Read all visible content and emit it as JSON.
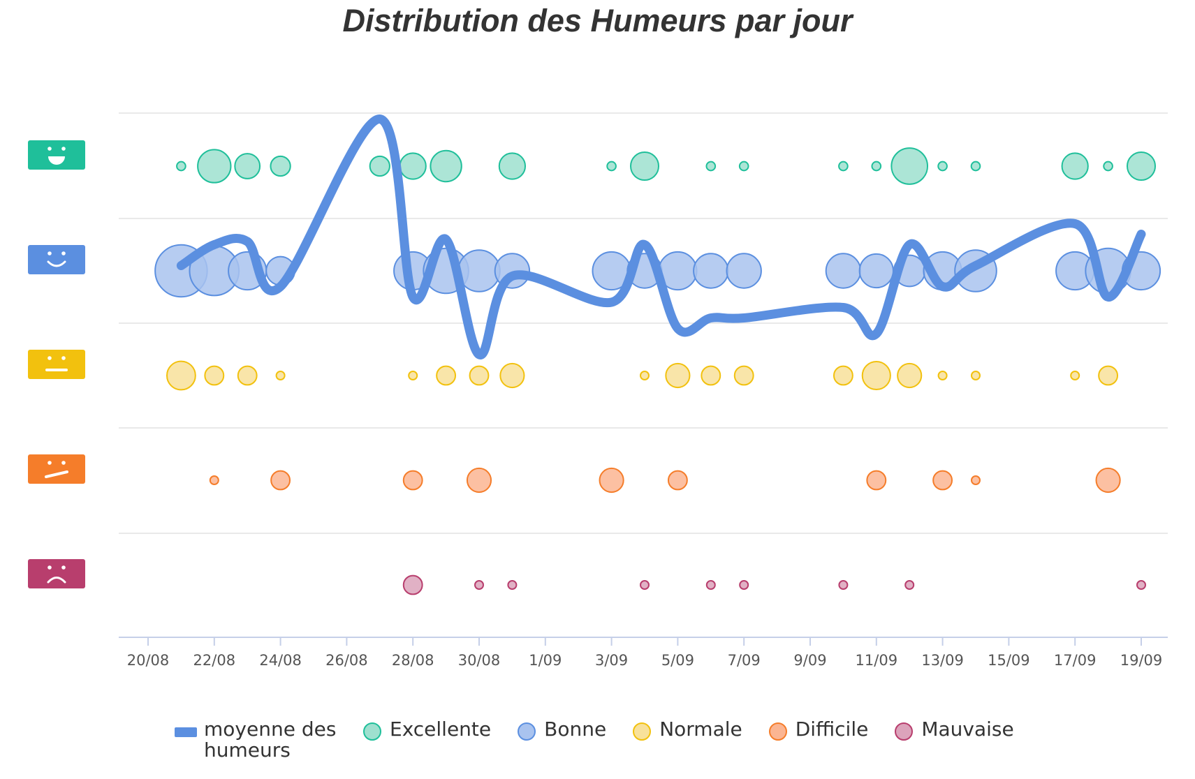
{
  "chart_data": {
    "type": "scatter",
    "title": "Distribution des Humeurs par jour",
    "x_ticks": [
      "20/08",
      "22/08",
      "24/08",
      "26/08",
      "28/08",
      "30/08",
      "1/09",
      "3/09",
      "5/09",
      "7/09",
      "9/09",
      "11/09",
      "13/09",
      "15/09",
      "17/09",
      "19/09"
    ],
    "x_range": [
      "2018-08-20",
      "2018-09-20"
    ],
    "y_categories": [
      "Excellente",
      "Bonne",
      "Normale",
      "Difficile",
      "Mauvaise"
    ],
    "y_icons": [
      "very-happy-face-icon",
      "happy-face-icon",
      "neutral-face-icon",
      "troubled-face-icon",
      "sad-face-icon"
    ],
    "series": [
      {
        "name": "Excellente",
        "color": "#1fbf9a",
        "fill": "#9ee0cf",
        "points": [
          [
            "2018-08-21",
            0.3
          ],
          [
            "2018-08-22",
            4.2
          ],
          [
            "2018-08-23",
            2.4
          ],
          [
            "2018-08-24",
            1.5
          ],
          [
            "2018-08-27",
            1.5
          ],
          [
            "2018-08-28",
            2.6
          ],
          [
            "2018-08-29",
            3.7
          ],
          [
            "2018-08-31",
            2.6
          ],
          [
            "2018-09-03",
            0.3
          ],
          [
            "2018-09-04",
            3.0
          ],
          [
            "2018-09-06",
            0.3
          ],
          [
            "2018-09-07",
            0.3
          ],
          [
            "2018-09-10",
            0.3
          ],
          [
            "2018-09-11",
            0.3
          ],
          [
            "2018-09-12",
            5.0
          ],
          [
            "2018-09-13",
            0.3
          ],
          [
            "2018-09-14",
            0.3
          ],
          [
            "2018-09-17",
            2.6
          ],
          [
            "2018-09-18",
            0.3
          ],
          [
            "2018-09-19",
            3.0
          ]
        ]
      },
      {
        "name": "Bonne",
        "color": "#5b8fe0",
        "fill": "#a9c3ef",
        "points": [
          [
            "2018-08-21",
            10.0
          ],
          [
            "2018-08-22",
            9.0
          ],
          [
            "2018-08-23",
            5.3
          ],
          [
            "2018-08-24",
            3.0
          ],
          [
            "2018-08-28",
            5.3
          ],
          [
            "2018-08-29",
            7.5
          ],
          [
            "2018-08-30",
            6.4
          ],
          [
            "2018-08-31",
            4.4
          ],
          [
            "2018-09-03",
            5.3
          ],
          [
            "2018-09-04",
            4.4
          ],
          [
            "2018-09-05",
            5.3
          ],
          [
            "2018-09-06",
            4.4
          ],
          [
            "2018-09-07",
            4.4
          ],
          [
            "2018-09-10",
            4.4
          ],
          [
            "2018-09-11",
            4.2
          ],
          [
            "2018-09-12",
            3.6
          ],
          [
            "2018-09-13",
            5.3
          ],
          [
            "2018-09-14",
            6.4
          ],
          [
            "2018-09-17",
            5.3
          ],
          [
            "2018-09-18",
            7.5
          ],
          [
            "2018-09-19",
            5.3
          ]
        ]
      },
      {
        "name": "Normale",
        "color": "#f2c10e",
        "fill": "#f8e19a",
        "points": [
          [
            "2018-08-21",
            3.0
          ],
          [
            "2018-08-22",
            1.3
          ],
          [
            "2018-08-23",
            1.3
          ],
          [
            "2018-08-24",
            0.1
          ],
          [
            "2018-08-28",
            0.1
          ],
          [
            "2018-08-29",
            1.3
          ],
          [
            "2018-08-30",
            1.3
          ],
          [
            "2018-08-31",
            2.1
          ],
          [
            "2018-09-04",
            0.1
          ],
          [
            "2018-09-05",
            2.1
          ],
          [
            "2018-09-06",
            1.3
          ],
          [
            "2018-09-07",
            1.3
          ],
          [
            "2018-09-10",
            1.3
          ],
          [
            "2018-09-11",
            2.9
          ],
          [
            "2018-09-12",
            2.1
          ],
          [
            "2018-09-13",
            0.1
          ],
          [
            "2018-09-14",
            0.1
          ],
          [
            "2018-09-17",
            0.1
          ],
          [
            "2018-09-18",
            1.3
          ]
        ]
      },
      {
        "name": "Difficile",
        "color": "#f57d2a",
        "fill": "#fbb592",
        "points": [
          [
            "2018-08-22",
            0.1
          ],
          [
            "2018-08-24",
            1.3
          ],
          [
            "2018-08-28",
            1.3
          ],
          [
            "2018-08-30",
            2.1
          ],
          [
            "2018-09-03",
            2.1
          ],
          [
            "2018-09-05",
            1.3
          ],
          [
            "2018-09-11",
            1.3
          ],
          [
            "2018-09-13",
            1.3
          ],
          [
            "2018-09-14",
            0.1
          ],
          [
            "2018-09-18",
            2.1
          ]
        ]
      },
      {
        "name": "Mauvaise",
        "color": "#b83e6d",
        "fill": "#dca3bb",
        "points": [
          [
            "2018-08-28",
            1.3
          ],
          [
            "2018-08-30",
            0.1
          ],
          [
            "2018-08-31",
            0.1
          ],
          [
            "2018-09-04",
            0.1
          ],
          [
            "2018-09-06",
            0.1
          ],
          [
            "2018-09-07",
            0.1
          ],
          [
            "2018-09-10",
            0.1
          ],
          [
            "2018-09-12",
            0.1
          ],
          [
            "2018-09-19",
            0.1
          ]
        ]
      }
    ],
    "average_line": {
      "name": "moyenne des humeurs",
      "color": "#5b8fe0",
      "points": [
        [
          "2018-08-21",
          4.05
        ],
        [
          "2018-08-22",
          4.25
        ],
        [
          "2018-08-23",
          4.28
        ],
        [
          "2018-08-24",
          3.85
        ],
        [
          "2018-08-27",
          5.45
        ],
        [
          "2018-08-28",
          3.75
        ],
        [
          "2018-08-29",
          4.3
        ],
        [
          "2018-08-30",
          3.2
        ],
        [
          "2018-08-31",
          3.95
        ],
        [
          "2018-09-03",
          3.7
        ],
        [
          "2018-09-04",
          4.25
        ],
        [
          "2018-09-05",
          3.45
        ],
        [
          "2018-09-06",
          3.55
        ],
        [
          "2018-09-07",
          3.55
        ],
        [
          "2018-09-10",
          3.65
        ],
        [
          "2018-09-11",
          3.4
        ],
        [
          "2018-09-12",
          4.25
        ],
        [
          "2018-09-13",
          3.85
        ],
        [
          "2018-09-14",
          4.05
        ],
        [
          "2018-09-17",
          4.45
        ],
        [
          "2018-09-18",
          3.75
        ],
        [
          "2018-09-19",
          4.35
        ]
      ]
    },
    "grid": true,
    "legend_position": "bottom"
  },
  "legend": [
    {
      "label": "moyenne des humeurs",
      "kind": "line",
      "color": "#5b8fe0"
    },
    {
      "label": "Excellente",
      "kind": "circle",
      "color": "#1fbf9a",
      "fill": "#9ee0cf"
    },
    {
      "label": "Bonne",
      "kind": "circle",
      "color": "#5b8fe0",
      "fill": "#a9c3ef"
    },
    {
      "label": "Normale",
      "kind": "circle",
      "color": "#f2c10e",
      "fill": "#f8e19a"
    },
    {
      "label": "Difficile",
      "kind": "circle",
      "color": "#f57d2a",
      "fill": "#fbb592"
    },
    {
      "label": "Mauvaise",
      "kind": "circle",
      "color": "#b83e6d",
      "fill": "#dca3bb"
    }
  ]
}
